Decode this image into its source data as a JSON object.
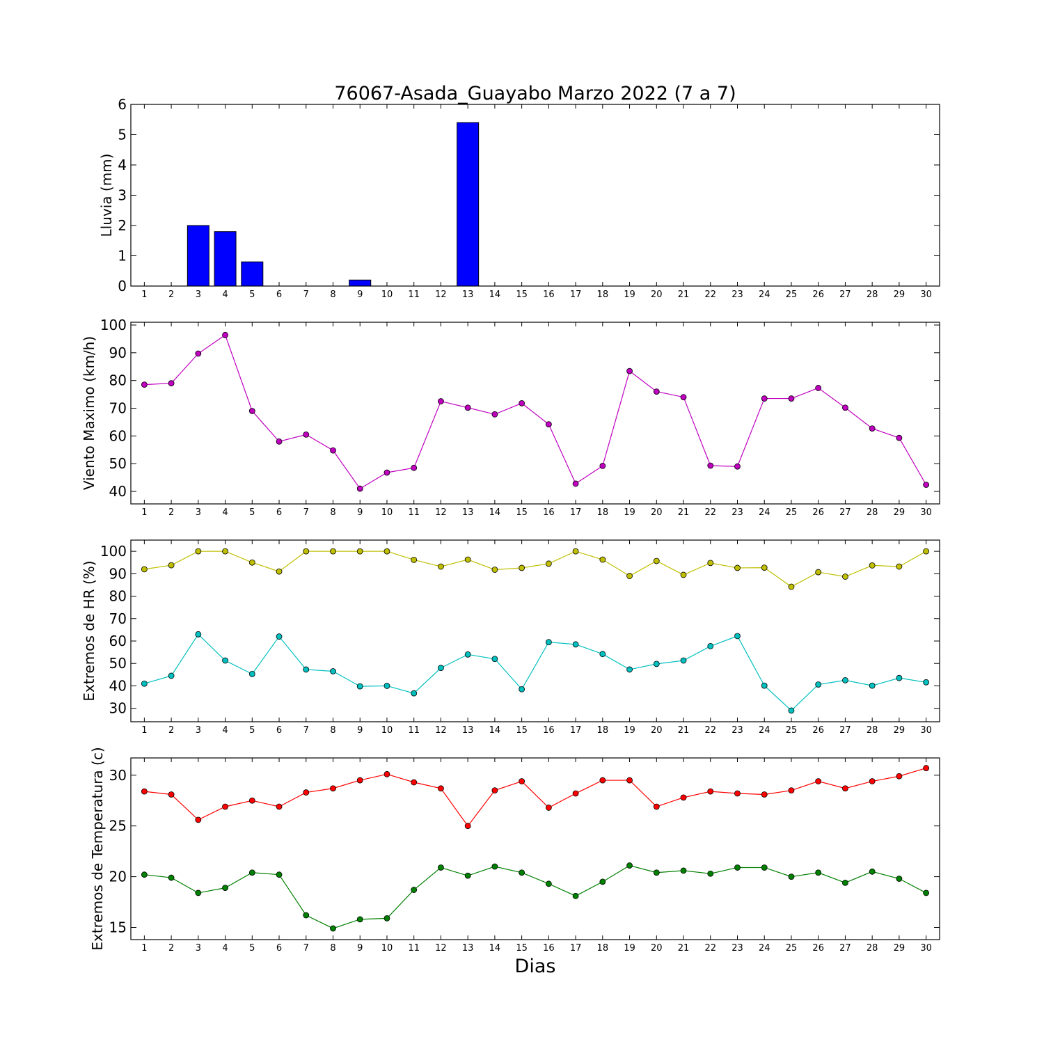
{
  "title": "76067-Asada_Guayabo Marzo 2022  (7 a 7)",
  "xlabel": "Dias",
  "colors": {
    "rain_bar": "#0000ff",
    "wind": "#bf00bf",
    "hr_max": "#bfbf00",
    "hr_min": "#00bfbf",
    "temp_max": "#ff0000",
    "temp_min": "#008000"
  },
  "chart_data": [
    {
      "type": "bar",
      "ylabel": "Lluvia (mm)",
      "ylim": [
        0,
        6
      ],
      "yticks": [
        0,
        1,
        2,
        3,
        4,
        5,
        6
      ],
      "categories": [
        "1",
        "2",
        "3",
        "4",
        "5",
        "6",
        "7",
        "8",
        "9",
        "10",
        "11",
        "12",
        "13",
        "14",
        "15",
        "16",
        "17",
        "18",
        "19",
        "20",
        "21",
        "22",
        "23",
        "24",
        "25",
        "26",
        "27",
        "28",
        "29",
        "30"
      ],
      "series": [
        {
          "values": [
            0,
            0,
            2.0,
            1.8,
            0.8,
            0,
            0,
            0,
            0.2,
            0,
            0,
            0,
            5.4,
            0,
            0,
            0,
            0,
            0,
            0,
            0,
            0,
            0,
            0,
            0,
            0,
            0,
            0,
            0,
            0,
            0
          ],
          "color": "#0000ff"
        }
      ]
    },
    {
      "type": "line",
      "ylabel": "Viento Maximo (km/h)",
      "ylim": [
        35.5,
        101
      ],
      "yticks": [
        40,
        50,
        60,
        70,
        80,
        90,
        100
      ],
      "categories": [
        "1",
        "2",
        "3",
        "4",
        "5",
        "6",
        "7",
        "8",
        "9",
        "10",
        "11",
        "12",
        "13",
        "14",
        "15",
        "16",
        "17",
        "18",
        "19",
        "20",
        "21",
        "22",
        "23",
        "24",
        "25",
        "26",
        "27",
        "28",
        "29",
        "30"
      ],
      "series": [
        {
          "values": [
            78.5,
            79,
            89.7,
            96.4,
            69,
            58,
            60.5,
            54.8,
            41,
            46.8,
            48.5,
            72.5,
            70.2,
            67.8,
            71.8,
            64.2,
            42.8,
            49.2,
            83.4,
            76,
            74,
            49.3,
            49,
            73.5,
            73.5,
            77.3,
            70.2,
            62.7,
            59.3,
            42.4
          ],
          "color": "#bf00bf"
        }
      ]
    },
    {
      "type": "line",
      "ylabel": "Extremos de HR (%)",
      "ylim": [
        24,
        105
      ],
      "yticks": [
        30,
        40,
        50,
        60,
        70,
        80,
        90,
        100
      ],
      "categories": [
        "1",
        "2",
        "3",
        "4",
        "5",
        "6",
        "7",
        "8",
        "9",
        "10",
        "11",
        "12",
        "13",
        "14",
        "15",
        "16",
        "17",
        "18",
        "19",
        "20",
        "21",
        "22",
        "23",
        "24",
        "25",
        "26",
        "27",
        "28",
        "29",
        "30"
      ],
      "series": [
        {
          "values": [
            92,
            93.8,
            100,
            100,
            95,
            91,
            100,
            100,
            100,
            100,
            96.2,
            93.2,
            96.3,
            91.8,
            92.6,
            94.5,
            100,
            96.3,
            89,
            95.7,
            89.5,
            94.8,
            92.6,
            92.7,
            84.2,
            90.7,
            88.7,
            93.7,
            93.2,
            100
          ],
          "color": "#bfbf00"
        },
        {
          "values": [
            41,
            44.5,
            63,
            51.3,
            45.3,
            62,
            47.3,
            46.5,
            39.8,
            40,
            36.7,
            48,
            54,
            52,
            38.5,
            59.5,
            58.5,
            54.2,
            47.3,
            49.8,
            51.3,
            57.7,
            62.2,
            40.1,
            29,
            40.6,
            42.5,
            40.1,
            43.5,
            41.6
          ],
          "color": "#00bfbf"
        }
      ]
    },
    {
      "type": "line",
      "ylabel": "Extremos de Temperatura (c)",
      "ylim": [
        13.8,
        31.7
      ],
      "yticks": [
        15,
        20,
        25,
        30
      ],
      "categories": [
        "1",
        "2",
        "3",
        "4",
        "5",
        "6",
        "7",
        "8",
        "9",
        "10",
        "11",
        "12",
        "13",
        "14",
        "15",
        "16",
        "17",
        "18",
        "19",
        "20",
        "21",
        "22",
        "23",
        "24",
        "25",
        "26",
        "27",
        "28",
        "29",
        "30"
      ],
      "series": [
        {
          "values": [
            28.4,
            28.1,
            25.6,
            26.9,
            27.5,
            26.9,
            28.3,
            28.7,
            29.5,
            30.1,
            29.3,
            28.7,
            25,
            28.5,
            29.4,
            26.8,
            28.2,
            29.5,
            29.5,
            26.9,
            27.8,
            28.4,
            28.2,
            28.1,
            28.5,
            29.4,
            28.7,
            29.4,
            29.9,
            30.7
          ],
          "color": "#ff0000"
        },
        {
          "values": [
            20.2,
            19.9,
            18.4,
            18.9,
            20.4,
            20.2,
            16.2,
            14.9,
            15.8,
            15.9,
            18.7,
            20.9,
            20.1,
            21,
            20.4,
            19.3,
            18.1,
            19.5,
            21.1,
            20.4,
            20.6,
            20.3,
            20.9,
            20.9,
            20,
            20.4,
            19.4,
            20.5,
            19.8,
            18.4
          ],
          "color": "#008000"
        }
      ]
    }
  ]
}
